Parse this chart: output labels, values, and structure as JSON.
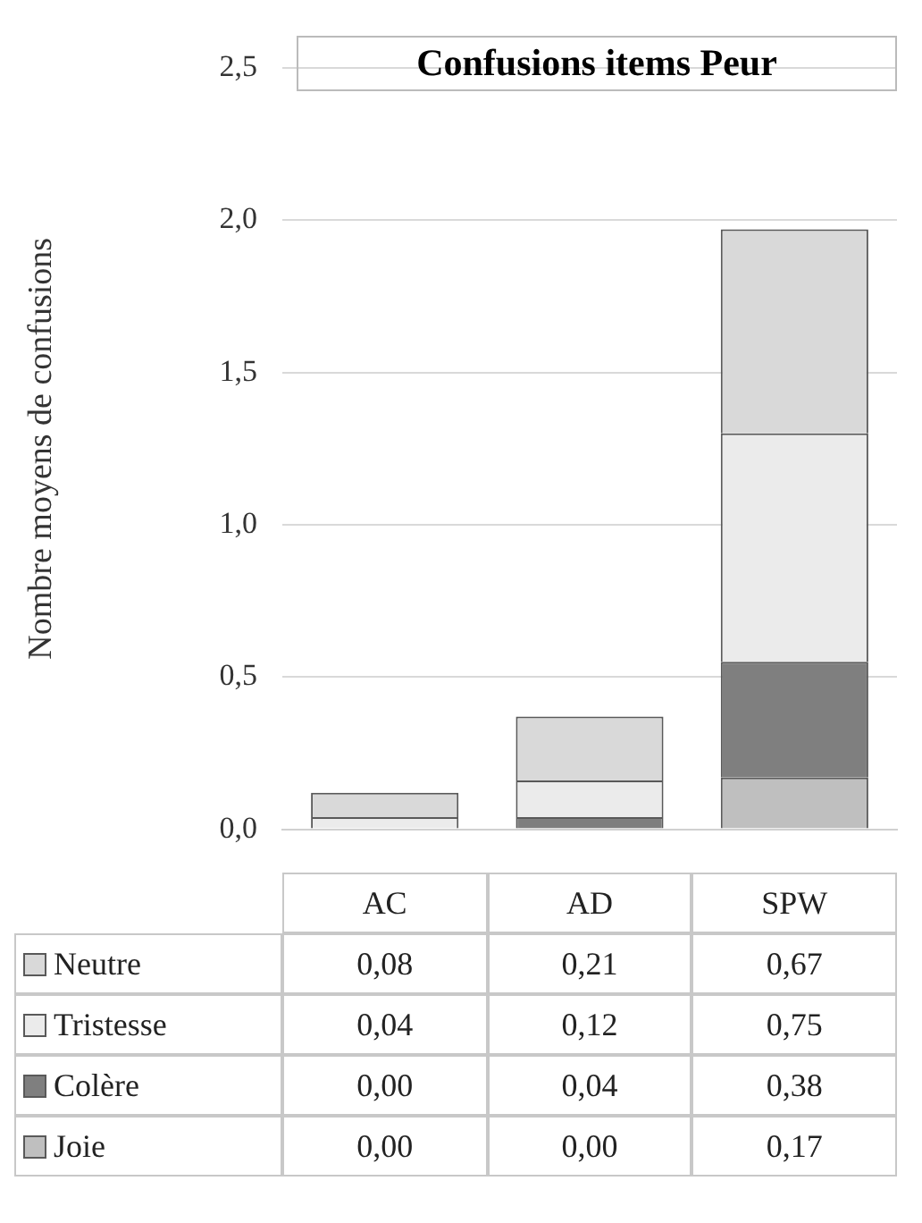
{
  "chart_data": {
    "type": "bar",
    "title": "Confusions items Peur",
    "ylabel": "Nombre moyens de confusions",
    "categories": [
      "AC",
      "AD",
      "SPW"
    ],
    "stacked": true,
    "series": [
      {
        "name": "Joie",
        "color": "#bfbfbf",
        "values": [
          0.0,
          0.0,
          0.17
        ],
        "value_labels": [
          "0,00",
          "0,00",
          "0,17"
        ]
      },
      {
        "name": "Colère",
        "color": "#7f7f7f",
        "values": [
          0.0,
          0.04,
          0.38
        ],
        "value_labels": [
          "0,00",
          "0,04",
          "0,38"
        ]
      },
      {
        "name": "Tristesse",
        "color": "#ebebeb",
        "values": [
          0.04,
          0.12,
          0.75
        ],
        "value_labels": [
          "0,04",
          "0,12",
          "0,75"
        ]
      },
      {
        "name": "Neutre",
        "color": "#d9d9d9",
        "values": [
          0.08,
          0.21,
          0.67
        ],
        "value_labels": [
          "0,08",
          "0,21",
          "0,67"
        ]
      }
    ],
    "ylim": [
      0,
      2.5
    ],
    "yticks": [
      {
        "value": 0,
        "label": "0,0"
      },
      {
        "value": 0.5,
        "label": "0,5"
      },
      {
        "value": 1,
        "label": "1,0"
      },
      {
        "value": 1.5,
        "label": "1,5"
      },
      {
        "value": 2,
        "label": "2,0"
      },
      {
        "value": 2.5,
        "label": "2,5"
      }
    ],
    "grid": "y",
    "legend": "bottom"
  }
}
